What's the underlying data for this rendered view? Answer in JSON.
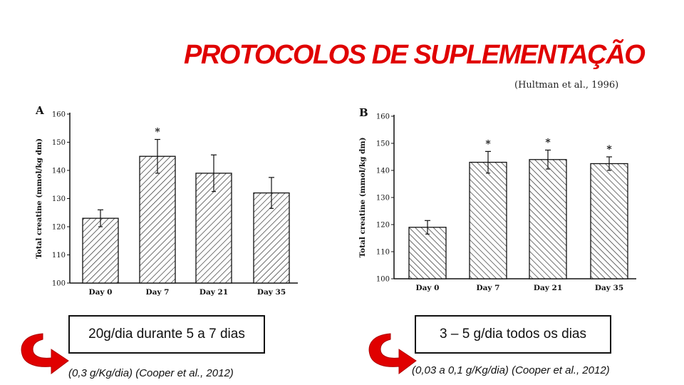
{
  "slide": {
    "title": "PROTOCOLOS DE SUPLEMENTAÇÃO",
    "citation": "(Hultman et al., 1996)",
    "left_box": "20g/dia durante 5 a 7 dias",
    "left_ref": "(0,3 g/Kg/dia) (Cooper et al., 2012)",
    "right_box": "3 – 5 g/dia todos os dias",
    "right_ref": "(0,03 a 0,1 g/Kg/dia) (Cooper et al., 2012)",
    "colors": {
      "title": "#e00000",
      "arrow": "#e00000"
    },
    "icons": [
      "curved-arrow-icon",
      "curved-arrow-icon"
    ]
  },
  "chart_data": [
    {
      "type": "bar",
      "panel": "A",
      "ylabel": "Total creatine (mmol/kg dm)",
      "xlabel": "",
      "categories": [
        "Day 0",
        "Day 7",
        "Day 21",
        "Day 35"
      ],
      "values": [
        123,
        145,
        139,
        132
      ],
      "errors": [
        3,
        6,
        6.5,
        5.5
      ],
      "significance": [
        "",
        "*",
        "",
        ""
      ],
      "ylim": [
        100,
        160
      ],
      "yticks": [
        100,
        110,
        120,
        130,
        140,
        150,
        160
      ],
      "grid": false,
      "legend": "none"
    },
    {
      "type": "bar",
      "panel": "B",
      "ylabel": "Total creatine (mmol/kg dm)",
      "xlabel": "",
      "categories": [
        "Day 0",
        "Day 7",
        "Day 21",
        "Day 35"
      ],
      "values": [
        119,
        143,
        144,
        142.5
      ],
      "errors": [
        2.5,
        4,
        3.5,
        2.5
      ],
      "significance": [
        "",
        "*",
        "*",
        "*"
      ],
      "ylim": [
        100,
        160
      ],
      "yticks": [
        100,
        110,
        120,
        130,
        140,
        150,
        160
      ],
      "grid": false,
      "legend": "none"
    }
  ]
}
